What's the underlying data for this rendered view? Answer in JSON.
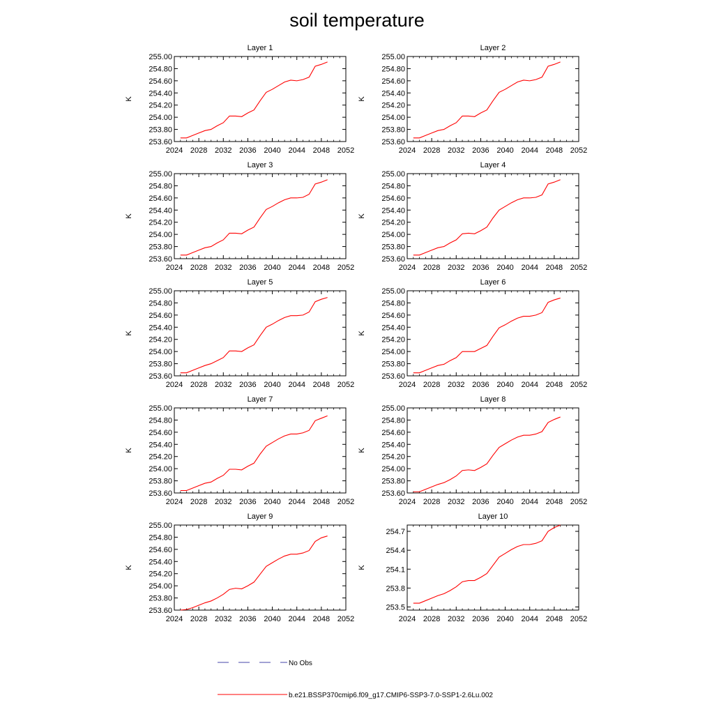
{
  "title": "soil temperature",
  "legend": {
    "obs_label": "No Obs",
    "model_label": "b.e21.BSSP370cmip6.f09_g17.CMIP6-SSP3-7.0-SSP1-2.6Lu.002",
    "model_color": "#ff0000",
    "obs_color": "#4444aa"
  },
  "chart_data": [
    {
      "type": "line",
      "title": "Layer 1",
      "ylabel": "K",
      "xlim": [
        2024,
        2052
      ],
      "ylim": [
        253.6,
        255.0
      ],
      "xticks": [
        "2024",
        "2028",
        "2032",
        "2036",
        "2040",
        "2044",
        "2048",
        "2052"
      ],
      "yticks": [
        "253.60",
        "253.80",
        "254.00",
        "254.20",
        "254.40",
        "254.60",
        "254.80",
        "255.00"
      ],
      "x": [
        2025,
        2026,
        2027,
        2028,
        2029,
        2030,
        2031,
        2032,
        2033,
        2034,
        2035,
        2036,
        2037,
        2038,
        2039,
        2040,
        2041,
        2042,
        2043,
        2044,
        2045,
        2046,
        2047,
        2048,
        2049
      ],
      "series": [
        {
          "values": [
            253.66,
            253.66,
            253.7,
            253.74,
            253.78,
            253.8,
            253.86,
            253.91,
            254.02,
            254.02,
            254.01,
            254.07,
            254.12,
            254.27,
            254.41,
            254.46,
            254.52,
            254.58,
            254.61,
            254.6,
            254.62,
            254.66,
            254.84,
            254.87,
            254.91
          ]
        }
      ]
    },
    {
      "type": "line",
      "title": "Layer 2",
      "ylabel": "K",
      "xlim": [
        2024,
        2052
      ],
      "ylim": [
        253.6,
        255.0
      ],
      "xticks": [
        "2024",
        "2028",
        "2032",
        "2036",
        "2040",
        "2044",
        "2048",
        "2052"
      ],
      "yticks": [
        "253.60",
        "253.80",
        "254.00",
        "254.20",
        "254.40",
        "254.60",
        "254.80",
        "255.00"
      ],
      "x": [
        2025,
        2026,
        2027,
        2028,
        2029,
        2030,
        2031,
        2032,
        2033,
        2034,
        2035,
        2036,
        2037,
        2038,
        2039,
        2040,
        2041,
        2042,
        2043,
        2044,
        2045,
        2046,
        2047,
        2048,
        2049
      ],
      "series": [
        {
          "values": [
            253.66,
            253.66,
            253.7,
            253.74,
            253.78,
            253.8,
            253.86,
            253.91,
            254.02,
            254.02,
            254.01,
            254.07,
            254.12,
            254.27,
            254.41,
            254.46,
            254.52,
            254.58,
            254.61,
            254.6,
            254.62,
            254.66,
            254.84,
            254.87,
            254.91
          ]
        }
      ]
    },
    {
      "type": "line",
      "title": "Layer 3",
      "ylabel": "K",
      "xlim": [
        2024,
        2052
      ],
      "ylim": [
        253.6,
        255.0
      ],
      "xticks": [
        "2024",
        "2028",
        "2032",
        "2036",
        "2040",
        "2044",
        "2048",
        "2052"
      ],
      "yticks": [
        "253.60",
        "253.80",
        "254.00",
        "254.20",
        "254.40",
        "254.60",
        "254.80",
        "255.00"
      ],
      "x": [
        2025,
        2026,
        2027,
        2028,
        2029,
        2030,
        2031,
        2032,
        2033,
        2034,
        2035,
        2036,
        2037,
        2038,
        2039,
        2040,
        2041,
        2042,
        2043,
        2044,
        2045,
        2046,
        2047,
        2048,
        2049
      ],
      "series": [
        {
          "values": [
            253.66,
            253.66,
            253.7,
            253.74,
            253.78,
            253.8,
            253.86,
            253.91,
            254.02,
            254.02,
            254.01,
            254.07,
            254.12,
            254.27,
            254.41,
            254.46,
            254.52,
            254.57,
            254.6,
            254.6,
            254.61,
            254.66,
            254.83,
            254.86,
            254.9
          ]
        }
      ]
    },
    {
      "type": "line",
      "title": "Layer 4",
      "ylabel": "K",
      "xlim": [
        2024,
        2052
      ],
      "ylim": [
        253.6,
        255.0
      ],
      "xticks": [
        "2024",
        "2028",
        "2032",
        "2036",
        "2040",
        "2044",
        "2048",
        "2052"
      ],
      "yticks": [
        "253.60",
        "253.80",
        "254.00",
        "254.20",
        "254.40",
        "254.60",
        "254.80",
        "255.00"
      ],
      "x": [
        2025,
        2026,
        2027,
        2028,
        2029,
        2030,
        2031,
        2032,
        2033,
        2034,
        2035,
        2036,
        2037,
        2038,
        2039,
        2040,
        2041,
        2042,
        2043,
        2044,
        2045,
        2046,
        2047,
        2048,
        2049
      ],
      "series": [
        {
          "values": [
            253.66,
            253.66,
            253.7,
            253.74,
            253.78,
            253.8,
            253.86,
            253.91,
            254.01,
            254.02,
            254.01,
            254.06,
            254.12,
            254.27,
            254.4,
            254.46,
            254.52,
            254.57,
            254.6,
            254.6,
            254.61,
            254.65,
            254.83,
            254.86,
            254.9
          ]
        }
      ]
    },
    {
      "type": "line",
      "title": "Layer 5",
      "ylabel": "K",
      "xlim": [
        2024,
        2052
      ],
      "ylim": [
        253.6,
        255.0
      ],
      "xticks": [
        "2024",
        "2028",
        "2032",
        "2036",
        "2040",
        "2044",
        "2048",
        "2052"
      ],
      "yticks": [
        "253.60",
        "253.80",
        "254.00",
        "254.20",
        "254.40",
        "254.60",
        "254.80",
        "255.00"
      ],
      "x": [
        2025,
        2026,
        2027,
        2028,
        2029,
        2030,
        2031,
        2032,
        2033,
        2034,
        2035,
        2036,
        2037,
        2038,
        2039,
        2040,
        2041,
        2042,
        2043,
        2044,
        2045,
        2046,
        2047,
        2048,
        2049
      ],
      "series": [
        {
          "values": [
            253.65,
            253.65,
            253.69,
            253.73,
            253.77,
            253.8,
            253.85,
            253.9,
            254.01,
            254.01,
            254.0,
            254.06,
            254.11,
            254.26,
            254.4,
            254.45,
            254.51,
            254.56,
            254.59,
            254.59,
            254.6,
            254.65,
            254.82,
            254.86,
            254.89
          ]
        }
      ]
    },
    {
      "type": "line",
      "title": "Layer 6",
      "ylabel": "K",
      "xlim": [
        2024,
        2052
      ],
      "ylim": [
        253.6,
        255.0
      ],
      "xticks": [
        "2024",
        "2028",
        "2032",
        "2036",
        "2040",
        "2044",
        "2048",
        "2052"
      ],
      "yticks": [
        "253.60",
        "253.80",
        "254.00",
        "254.20",
        "254.40",
        "254.60",
        "254.80",
        "255.00"
      ],
      "x": [
        2025,
        2026,
        2027,
        2028,
        2029,
        2030,
        2031,
        2032,
        2033,
        2034,
        2035,
        2036,
        2037,
        2038,
        2039,
        2040,
        2041,
        2042,
        2043,
        2044,
        2045,
        2046,
        2047,
        2048,
        2049
      ],
      "series": [
        {
          "values": [
            253.65,
            253.65,
            253.69,
            253.73,
            253.77,
            253.79,
            253.85,
            253.9,
            254.0,
            254.0,
            254.0,
            254.05,
            254.1,
            254.25,
            254.39,
            254.44,
            254.5,
            254.55,
            254.58,
            254.58,
            254.6,
            254.64,
            254.81,
            254.85,
            254.88
          ]
        }
      ]
    },
    {
      "type": "line",
      "title": "Layer 7",
      "ylabel": "K",
      "xlim": [
        2024,
        2052
      ],
      "ylim": [
        253.6,
        255.0
      ],
      "xticks": [
        "2024",
        "2028",
        "2032",
        "2036",
        "2040",
        "2044",
        "2048",
        "2052"
      ],
      "yticks": [
        "253.60",
        "253.80",
        "254.00",
        "254.20",
        "254.40",
        "254.60",
        "254.80",
        "255.00"
      ],
      "x": [
        2025,
        2026,
        2027,
        2028,
        2029,
        2030,
        2031,
        2032,
        2033,
        2034,
        2035,
        2036,
        2037,
        2038,
        2039,
        2040,
        2041,
        2042,
        2043,
        2044,
        2045,
        2046,
        2047,
        2048,
        2049
      ],
      "series": [
        {
          "values": [
            253.64,
            253.64,
            253.68,
            253.72,
            253.76,
            253.78,
            253.84,
            253.89,
            253.99,
            253.99,
            253.98,
            254.04,
            254.09,
            254.24,
            254.37,
            254.43,
            254.49,
            254.54,
            254.57,
            254.57,
            254.59,
            254.63,
            254.79,
            254.83,
            254.87
          ]
        }
      ]
    },
    {
      "type": "line",
      "title": "Layer 8",
      "ylabel": "K",
      "xlim": [
        2024,
        2052
      ],
      "ylim": [
        253.6,
        255.0
      ],
      "xticks": [
        "2024",
        "2028",
        "2032",
        "2036",
        "2040",
        "2044",
        "2048",
        "2052"
      ],
      "yticks": [
        "253.60",
        "253.80",
        "254.00",
        "254.20",
        "254.40",
        "254.60",
        "254.80",
        "255.00"
      ],
      "x": [
        2025,
        2026,
        2027,
        2028,
        2029,
        2030,
        2031,
        2032,
        2033,
        2034,
        2035,
        2036,
        2037,
        2038,
        2039,
        2040,
        2041,
        2042,
        2043,
        2044,
        2045,
        2046,
        2047,
        2048,
        2049
      ],
      "series": [
        {
          "values": [
            253.62,
            253.62,
            253.66,
            253.7,
            253.74,
            253.77,
            253.82,
            253.88,
            253.97,
            253.98,
            253.97,
            254.02,
            254.08,
            254.22,
            254.35,
            254.41,
            254.47,
            254.52,
            254.55,
            254.55,
            254.57,
            254.61,
            254.76,
            254.81,
            254.85
          ]
        }
      ]
    },
    {
      "type": "line",
      "title": "Layer 9",
      "ylabel": "K",
      "xlim": [
        2024,
        2052
      ],
      "ylim": [
        253.6,
        255.0
      ],
      "xticks": [
        "2024",
        "2028",
        "2032",
        "2036",
        "2040",
        "2044",
        "2048",
        "2052"
      ],
      "yticks": [
        "253.60",
        "253.80",
        "254.00",
        "254.20",
        "254.40",
        "254.60",
        "254.80",
        "255.00"
      ],
      "x": [
        2025,
        2026,
        2027,
        2028,
        2029,
        2030,
        2031,
        2032,
        2033,
        2034,
        2035,
        2036,
        2037,
        2038,
        2039,
        2040,
        2041,
        2042,
        2043,
        2044,
        2045,
        2046,
        2047,
        2048,
        2049
      ],
      "series": [
        {
          "values": [
            253.6,
            253.61,
            253.64,
            253.68,
            253.72,
            253.75,
            253.8,
            253.86,
            253.94,
            253.96,
            253.95,
            254.0,
            254.06,
            254.19,
            254.32,
            254.38,
            254.44,
            254.49,
            254.52,
            254.52,
            254.54,
            254.58,
            254.73,
            254.79,
            254.82
          ]
        }
      ]
    },
    {
      "type": "line",
      "title": "Layer 10",
      "ylabel": "K",
      "xlim": [
        2024,
        2052
      ],
      "ylim": [
        253.45,
        254.8
      ],
      "xticks": [
        "2024",
        "2028",
        "2032",
        "2036",
        "2040",
        "2044",
        "2048",
        "2052"
      ],
      "yticks": [
        "253.5",
        "253.8",
        "254.1",
        "254.4",
        "254.7"
      ],
      "yticks_values": [
        253.5,
        253.8,
        254.1,
        254.4,
        254.7
      ],
      "x": [
        2025,
        2026,
        2027,
        2028,
        2029,
        2030,
        2031,
        2032,
        2033,
        2034,
        2035,
        2036,
        2037,
        2038,
        2039,
        2040,
        2041,
        2042,
        2043,
        2044,
        2045,
        2046,
        2047,
        2048,
        2049
      ],
      "series": [
        {
          "values": [
            253.56,
            253.56,
            253.6,
            253.64,
            253.68,
            253.71,
            253.76,
            253.82,
            253.9,
            253.92,
            253.92,
            253.97,
            254.03,
            254.16,
            254.29,
            254.35,
            254.41,
            254.46,
            254.49,
            254.49,
            254.51,
            254.55,
            254.7,
            254.76,
            254.8
          ]
        }
      ]
    }
  ]
}
